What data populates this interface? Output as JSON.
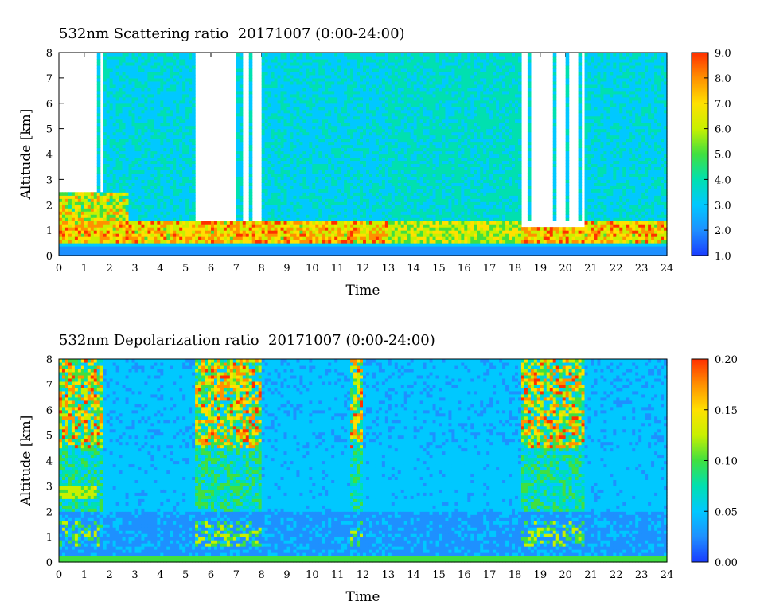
{
  "chart_data": [
    {
      "type": "heatmap",
      "title": "532nm Scattering ratio  20171007 (0:00-24:00)",
      "xlabel": "Time",
      "ylabel": "Altitude [km]",
      "x_ticks": [
        "0",
        "1",
        "2",
        "3",
        "4",
        "5",
        "6",
        "7",
        "8",
        "9",
        "10",
        "11",
        "12",
        "13",
        "14",
        "15",
        "16",
        "17",
        "18",
        "19",
        "20",
        "21",
        "22",
        "23",
        "24"
      ],
      "y_ticks": [
        "0",
        "1",
        "2",
        "3",
        "4",
        "5",
        "6",
        "7",
        "8"
      ],
      "xlim": [
        0,
        24
      ],
      "ylim": [
        0,
        8
      ],
      "colorbar": {
        "ticks": [
          "1.0",
          "2.0",
          "3.0",
          "4.0",
          "5.0",
          "6.0",
          "7.0",
          "8.0",
          "9.0"
        ],
        "range": [
          1.0,
          9.0
        ],
        "colors": [
          "#1a3cff",
          "#1e90ff",
          "#00c8ff",
          "#00e0b0",
          "#40e040",
          "#c8f000",
          "#ffe000",
          "#ff9000",
          "#ff3000"
        ]
      },
      "clear_sky_gaps": [
        [
          0.0,
          1.8
        ],
        [
          5.4,
          7.0
        ],
        [
          7.3,
          8.0
        ],
        [
          18.3,
          20.8
        ]
      ],
      "low_cloud_layer_top_km": 2.5,
      "aerosol_layer_km": [
        0.3,
        1.5
      ]
    },
    {
      "type": "heatmap",
      "title": "532nm Depolarization ratio  20171007 (0:00-24:00)",
      "xlabel": "Time",
      "ylabel": "Altitude [km]",
      "x_ticks": [
        "0",
        "1",
        "2",
        "3",
        "4",
        "5",
        "6",
        "7",
        "8",
        "9",
        "10",
        "11",
        "12",
        "13",
        "14",
        "15",
        "16",
        "17",
        "18",
        "19",
        "20",
        "21",
        "22",
        "23",
        "24"
      ],
      "y_ticks": [
        "0",
        "1",
        "2",
        "3",
        "4",
        "5",
        "6",
        "7",
        "8"
      ],
      "xlim": [
        0,
        24
      ],
      "ylim": [
        0,
        8
      ],
      "colorbar": {
        "ticks": [
          "0.00",
          "0.05",
          "0.10",
          "0.15",
          "0.20"
        ],
        "range": [
          0.0,
          0.2
        ],
        "colors": [
          "#1a3cff",
          "#1e90ff",
          "#00c8ff",
          "#00e0b0",
          "#40e040",
          "#c8f000",
          "#ffe000",
          "#ff9000",
          "#ff3000"
        ]
      },
      "noisy_high_depol_periods": [
        [
          0.0,
          1.8
        ],
        [
          5.4,
          8.0
        ],
        [
          11.5,
          12.0
        ],
        [
          18.3,
          20.8
        ]
      ]
    }
  ]
}
